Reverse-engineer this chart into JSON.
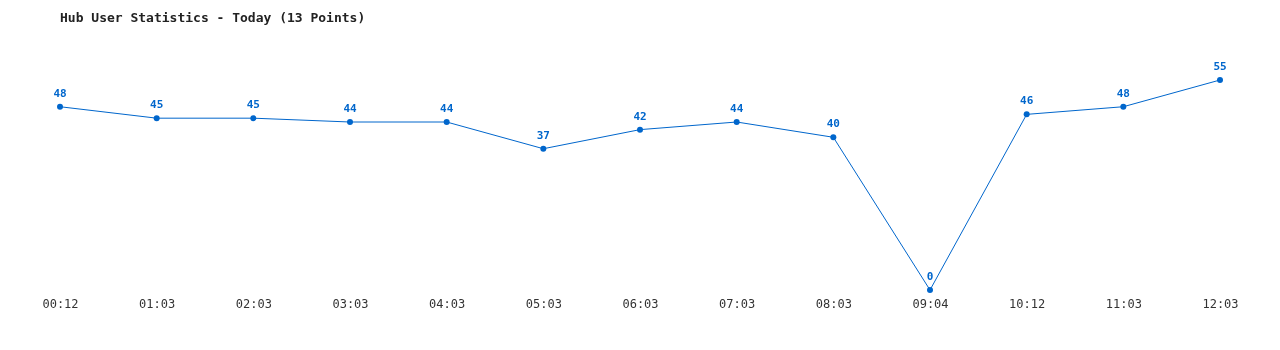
{
  "chart_data": {
    "type": "line",
    "title": "Hub User Statistics - Today (13 Points)",
    "categories": [
      "00:12",
      "01:03",
      "02:03",
      "03:03",
      "04:03",
      "05:03",
      "06:03",
      "07:03",
      "08:03",
      "09:04",
      "10:12",
      "11:03",
      "12:03"
    ],
    "values": [
      48,
      45,
      45,
      44,
      44,
      37,
      42,
      44,
      40,
      0,
      46,
      48,
      55
    ],
    "color": "#0066cc",
    "marker": "circle",
    "data_labels": true,
    "grid": false
  }
}
